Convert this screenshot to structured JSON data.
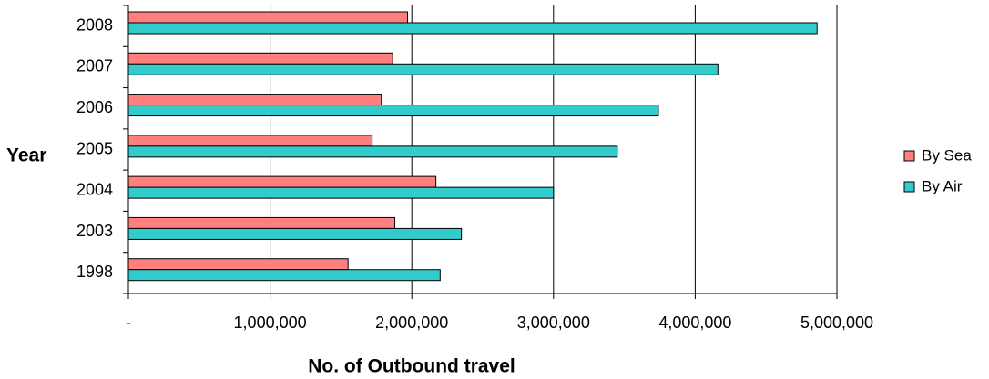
{
  "chart_data": {
    "type": "bar",
    "orientation": "horizontal",
    "categories": [
      "2008",
      "2007",
      "2006",
      "2005",
      "2004",
      "2003",
      "1998"
    ],
    "series": [
      {
        "name": "By Sea",
        "color": "#ff7f7f",
        "values": [
          1970000,
          1865000,
          1785000,
          1720000,
          2170000,
          1880000,
          1550000
        ]
      },
      {
        "name": "By Air",
        "color": "#33cccc",
        "values": [
          4860000,
          4160000,
          3740000,
          3450000,
          3000000,
          2350000,
          2200000
        ]
      }
    ],
    "xlabel": "No. of Outbound travel",
    "ylabel": "Year",
    "xlim": [
      0,
      5000000
    ],
    "x_ticks": [
      {
        "value": 0,
        "label": "-"
      },
      {
        "value": 1000000,
        "label": "1,000,000"
      },
      {
        "value": 2000000,
        "label": "2,000,000"
      },
      {
        "value": 3000000,
        "label": "3,000,000"
      },
      {
        "value": 4000000,
        "label": "4,000,000"
      },
      {
        "value": 5000000,
        "label": "5,000,000"
      }
    ],
    "grid": "vertical",
    "legend_position": "right"
  }
}
